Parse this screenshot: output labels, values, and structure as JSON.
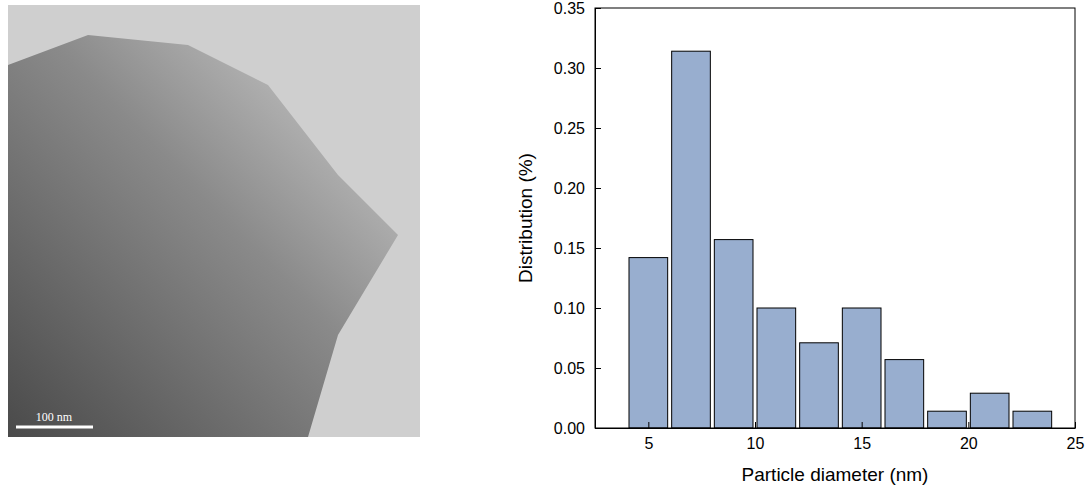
{
  "micrograph": {
    "scale_bar": "100 nm"
  },
  "chart_data": {
    "type": "histogram",
    "xlabel": "Particle diameter (nm)",
    "ylabel": "Distribution (%)",
    "bins": [
      4,
      6,
      8,
      10,
      12,
      14,
      16,
      18,
      20,
      22,
      24
    ],
    "values": [
      0.142,
      0.314,
      0.157,
      0.1,
      0.071,
      0.1,
      0.057,
      0.014,
      0.029,
      0.014
    ],
    "color": "#98aecf",
    "xlim": [
      2.5,
      25
    ],
    "ylim": [
      0,
      0.35
    ],
    "xticks": [
      5,
      10,
      15,
      20,
      25
    ],
    "yticks": [
      {
        "value": 0,
        "label": "0.00"
      },
      {
        "value": 0.05,
        "label": "0.05"
      },
      {
        "value": 0.1,
        "label": "0.10"
      },
      {
        "value": 0.15,
        "label": "0.15"
      },
      {
        "value": 0.2,
        "label": "0.20"
      },
      {
        "value": 0.25,
        "label": "0.25"
      },
      {
        "value": 0.3,
        "label": "0.30"
      },
      {
        "value": 0.35,
        "label": "0.35"
      }
    ],
    "grid": false
  }
}
